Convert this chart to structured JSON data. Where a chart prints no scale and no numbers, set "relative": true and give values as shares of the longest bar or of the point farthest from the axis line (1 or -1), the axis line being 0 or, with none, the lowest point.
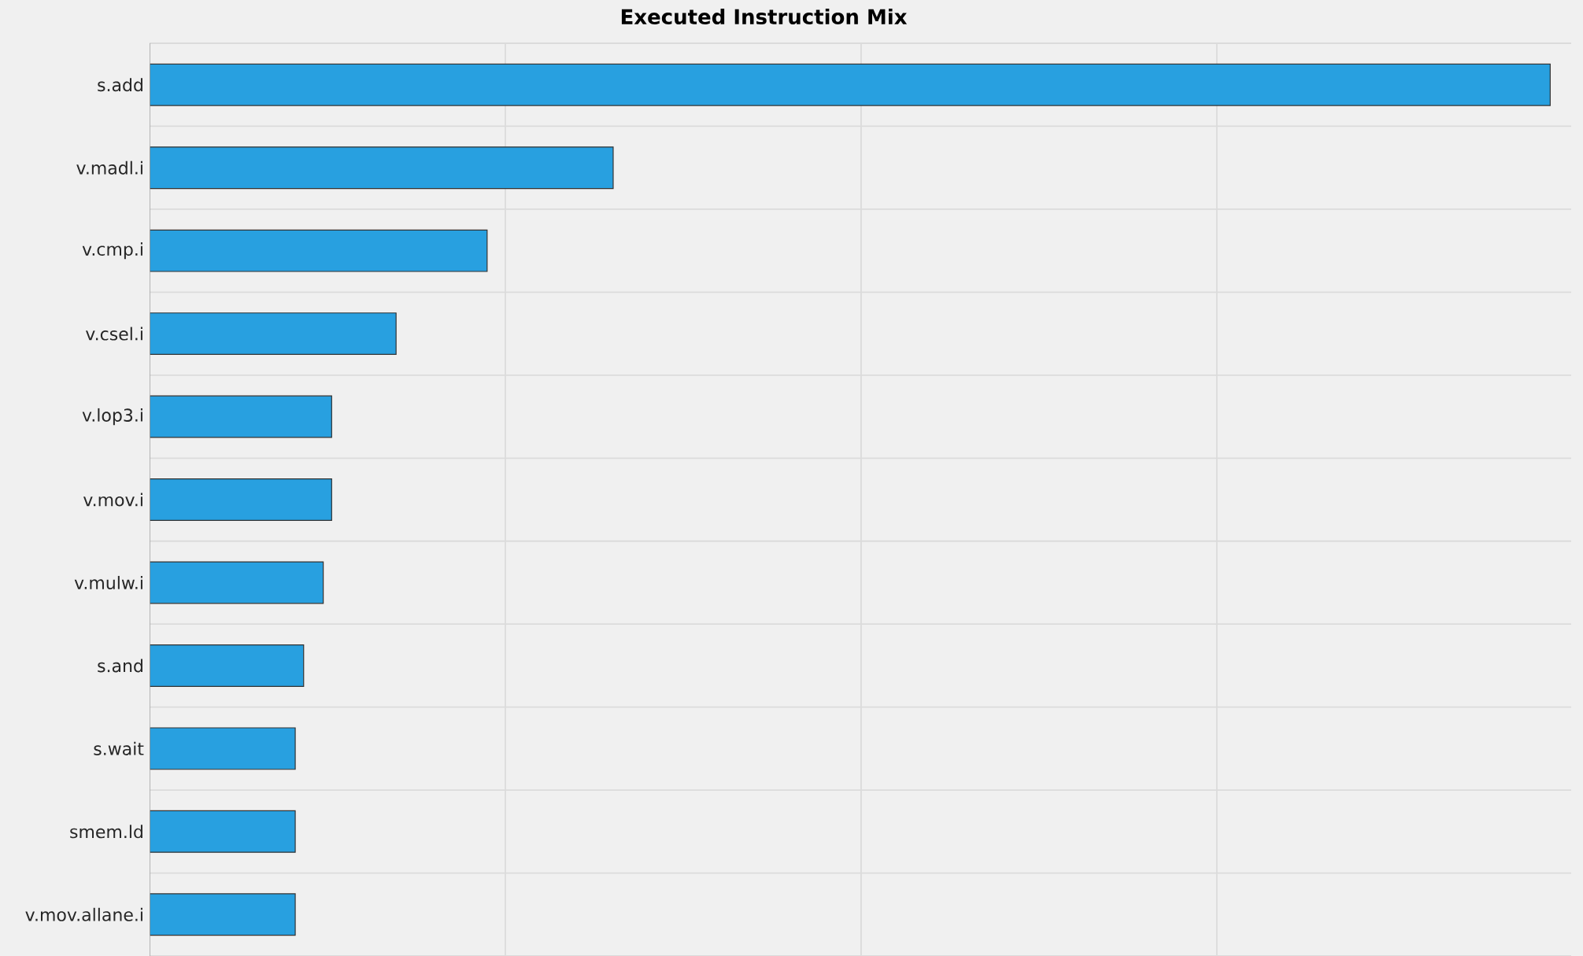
{
  "chart_data": {
    "type": "bar",
    "orientation": "horizontal",
    "title": "Executed Instruction Mix",
    "categories": [
      "s.add",
      "v.madl.i",
      "v.cmp.i",
      "v.csel.i",
      "v.lop3.i",
      "v.mov.i",
      "v.mulw.i",
      "s.and",
      "s.wait",
      "smem.ld",
      "v.mov.allane.i"
    ],
    "values": [
      1,
      0.331,
      0.241,
      0.176,
      0.13,
      0.13,
      0.124,
      0.11,
      0.104,
      0.104,
      0.104
    ],
    "color": "#28a0e0",
    "relative": true,
    "grid": true
  }
}
